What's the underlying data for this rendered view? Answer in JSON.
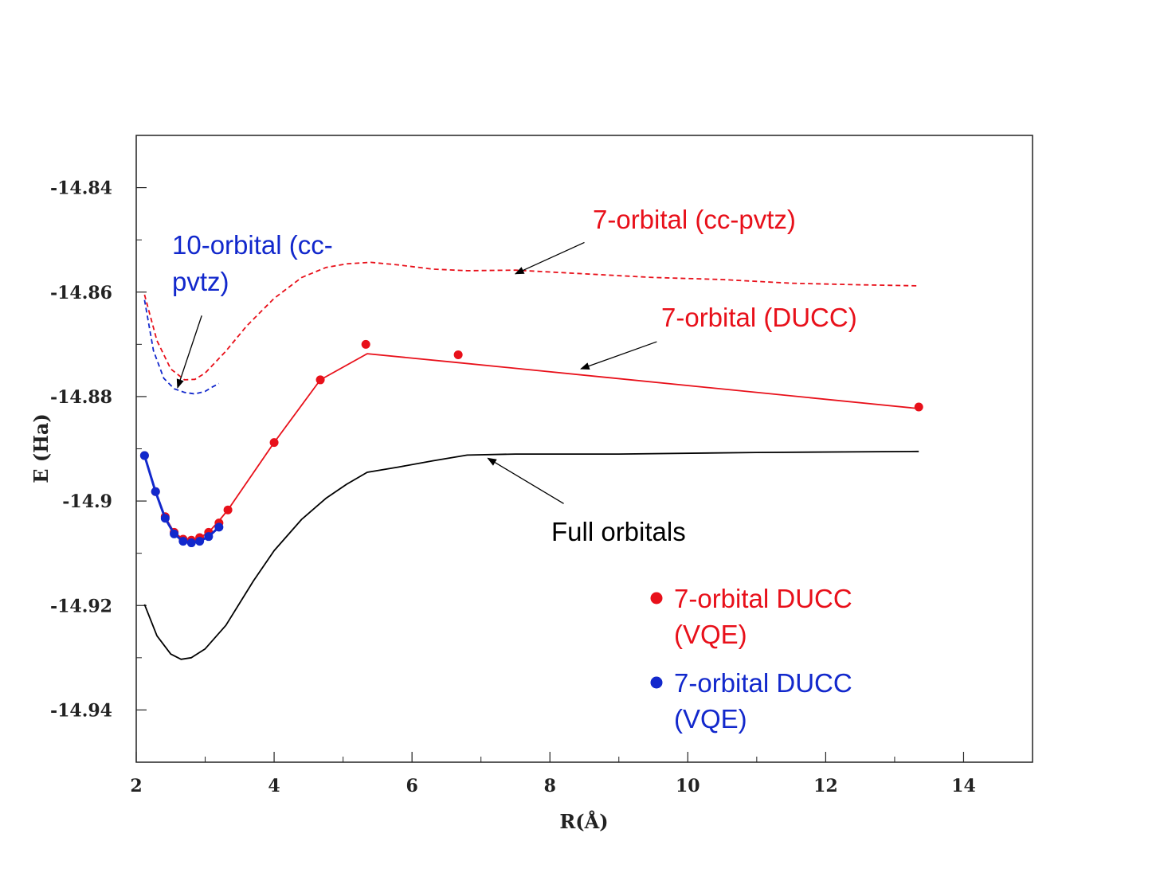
{
  "chart_data": {
    "type": "line",
    "xlabel": "R(Å)",
    "ylabel": "E (Ha)",
    "xlim": [
      2,
      15
    ],
    "ylim": [
      -14.95,
      -14.83
    ],
    "xticks": [
      2,
      4,
      6,
      8,
      10,
      12,
      14
    ],
    "yticks": [
      -14.84,
      -14.86,
      -14.88,
      -14.9,
      -14.92,
      -14.94
    ],
    "ytick_labels": [
      "-14.84",
      "-14.86",
      "-14.88",
      "-14.9",
      "-14.92",
      "-14.94"
    ],
    "grid": false,
    "colors": {
      "red": "#e8101a",
      "blue": "#1228cc",
      "black": "#000000"
    },
    "series": [
      {
        "name": "7-orbital (cc-pvtz)",
        "color": "#e8101a",
        "style": "dashed",
        "x": [
          2.12,
          2.3,
          2.5,
          2.7,
          2.85,
          3.0,
          3.3,
          3.6,
          4.0,
          4.4,
          4.75,
          5.05,
          5.4,
          5.8,
          6.3,
          6.8,
          7.5,
          8.5,
          9.5,
          10.5,
          11.5,
          12.5,
          13.35
        ],
        "y": [
          -14.8605,
          -14.8693,
          -14.8747,
          -14.8768,
          -14.8767,
          -14.8755,
          -14.8713,
          -14.8665,
          -14.8612,
          -14.8572,
          -14.8553,
          -14.8546,
          -14.8543,
          -14.8548,
          -14.8556,
          -14.8559,
          -14.8558,
          -14.8565,
          -14.8572,
          -14.8576,
          -14.8583,
          -14.8586,
          -14.8588
        ]
      },
      {
        "name": "10-orbital (cc-pvtz)",
        "color": "#1228cc",
        "style": "dashed",
        "x": [
          2.12,
          2.25,
          2.4,
          2.55,
          2.7,
          2.85,
          3.0,
          3.1,
          3.2
        ],
        "y": [
          -14.8615,
          -14.8712,
          -14.8765,
          -14.8785,
          -14.8792,
          -14.8795,
          -14.879,
          -14.8782,
          -14.8775
        ]
      },
      {
        "name": "7-orbital (DUCC)",
        "color": "#e8101a",
        "style": "solid",
        "x": [
          2.12,
          2.28,
          2.42,
          2.55,
          2.68,
          2.8,
          2.92,
          3.05,
          3.2,
          3.33,
          4.0,
          4.67,
          5.35,
          6.67,
          13.35
        ],
        "y": [
          -14.8913,
          -14.8982,
          -14.903,
          -14.906,
          -14.9073,
          -14.9075,
          -14.907,
          -14.906,
          -14.9038,
          -14.9017,
          -14.8888,
          -14.8768,
          -14.8718,
          -14.8735,
          -14.8823
        ]
      },
      {
        "name": "7-orbital DUCC (VQE)",
        "color": "#e8101a",
        "style": "markers",
        "x": [
          2.12,
          2.28,
          2.42,
          2.55,
          2.68,
          2.8,
          2.92,
          3.05,
          3.2,
          3.33,
          4.0,
          4.67,
          5.33,
          6.67,
          13.35
        ],
        "y": [
          -14.8913,
          -14.8982,
          -14.903,
          -14.906,
          -14.9073,
          -14.9075,
          -14.907,
          -14.906,
          -14.9042,
          -14.9017,
          -14.8888,
          -14.8768,
          -14.87,
          -14.872,
          -14.882
        ]
      },
      {
        "name": "7-orbital DUCC (VQE)",
        "color": "#1228cc",
        "style": "solid+markers",
        "x": [
          2.12,
          2.28,
          2.42,
          2.55,
          2.68,
          2.8,
          2.92,
          3.05,
          3.2
        ],
        "y": [
          -14.8913,
          -14.8982,
          -14.9033,
          -14.9063,
          -14.9077,
          -14.908,
          -14.9077,
          -14.9068,
          -14.905
        ]
      },
      {
        "name": "Full orbitals",
        "color": "#000000",
        "style": "solid",
        "x": [
          2.12,
          2.3,
          2.5,
          2.65,
          2.8,
          3.0,
          3.3,
          3.7,
          4.0,
          4.4,
          4.75,
          5.05,
          5.35,
          5.8,
          6.3,
          6.8,
          7.5,
          9.0,
          11.0,
          13.35
        ],
        "y": [
          -14.9198,
          -14.9258,
          -14.9293,
          -14.9303,
          -14.93,
          -14.9283,
          -14.9238,
          -14.9153,
          -14.9095,
          -14.9035,
          -14.8995,
          -14.8968,
          -14.8945,
          -14.8935,
          -14.8923,
          -14.8912,
          -14.891,
          -14.891,
          -14.8907,
          -14.8905
        ]
      }
    ],
    "annotations": [
      {
        "text": "7-orbital (cc-pvtz)",
        "color": "#e8101a"
      },
      {
        "text_lines": [
          "10-orbital (cc-",
          "pvtz)"
        ],
        "color": "#1228cc"
      },
      {
        "text": "7-orbital (DUCC)",
        "color": "#e8101a"
      },
      {
        "text": "Full orbitals",
        "color": "#000000"
      }
    ],
    "legend": {
      "placement": "bottom-right",
      "entries": [
        {
          "marker_color": "#e8101a",
          "lines": [
            "7-orbital DUCC",
            "(VQE)"
          ]
        },
        {
          "marker_color": "#1228cc",
          "lines": [
            "7-orbital DUCC",
            "(VQE)"
          ]
        }
      ]
    }
  }
}
